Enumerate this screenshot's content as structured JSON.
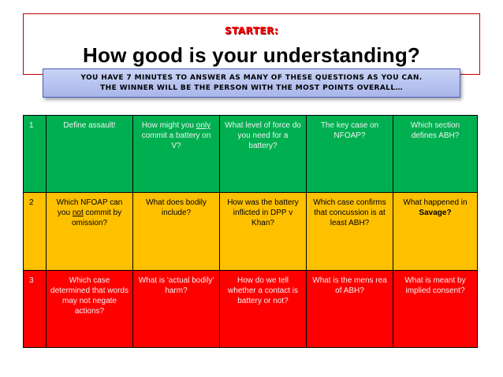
{
  "header": {
    "starter": "STARTER:",
    "title": "How good is your understanding?",
    "banner_line1": "YOU HAVE 7 MINUTES TO ANSWER AS MANY OF THESE QUESTIONS AS YOU CAN.",
    "banner_line2": "THE WINNER WILL BE THE PERSON WITH THE MOST POINTS OVERALL…"
  },
  "colors": {
    "row1": "#00b050",
    "row2": "#ffc000",
    "row3": "#ff0000",
    "starter": "#ff0000",
    "border": "#c00000"
  },
  "rows": [
    {
      "number": "1",
      "cells": [
        {
          "text": "Define assault!"
        },
        {
          "pre": "How might you ",
          "em": "only",
          "post": " commit a battery on V?"
        },
        {
          "text": "What level of force do you need for a battery?"
        },
        {
          "text": "The key case on NFOAP?"
        },
        {
          "text": "Which section defines ABH?"
        }
      ]
    },
    {
      "number": "2",
      "cells": [
        {
          "pre": "Which NFOAP can you ",
          "em": "not",
          "post": " commit by omission?"
        },
        {
          "text": "What does bodily include?"
        },
        {
          "text": "How was the battery inflicted in DPP v Khan?"
        },
        {
          "text": "Which case confirms that concussion is at least ABH?"
        },
        {
          "pre": "What happened in ",
          "strong": "Savage?"
        }
      ]
    },
    {
      "number": "3",
      "cells": [
        {
          "text": "Which case determined that words may not negate actions?"
        },
        {
          "text": "What is 'actual bodily' harm?"
        },
        {
          "text": "How do we tell whether a contact is battery or not?"
        },
        {
          "text": "What is the mens rea of ABH?"
        },
        {
          "text": "What is meant by implied consent?"
        }
      ]
    }
  ]
}
